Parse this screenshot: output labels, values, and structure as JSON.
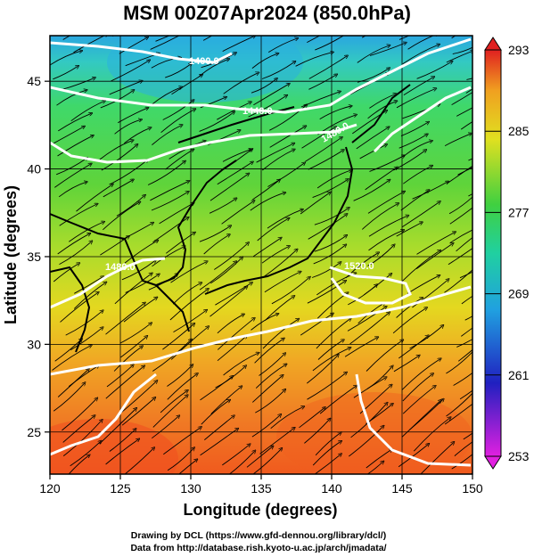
{
  "title": "MSM 00Z07Apr2024 (850.0hPa)",
  "x_axis": {
    "label": "Longitude (degrees)",
    "ticks": [
      "120",
      "125",
      "130",
      "135",
      "140",
      "145",
      "150"
    ],
    "range": [
      120,
      150
    ]
  },
  "y_axis": {
    "label": "Latitude  (degrees)",
    "ticks": [
      "25",
      "30",
      "35",
      "40",
      "45"
    ],
    "range": [
      22.6,
      47.6
    ]
  },
  "colorbar": {
    "ticks": [
      "253",
      "261",
      "269",
      "277",
      "285",
      "293"
    ],
    "range": [
      253,
      293
    ],
    "colors": [
      "#e020e0",
      "#2020c0",
      "#20c0e0",
      "#20c020",
      "#e0e020",
      "#e02020"
    ]
  },
  "contours": {
    "color": "#ffffff",
    "labels": [
      "1400.0",
      "1440.0",
      "1480.0",
      "1520.0",
      "1480.0"
    ]
  },
  "credits": {
    "line1": "Drawing by DCL (https://www.gfd-dennou.org/library/dcl/)",
    "line2": "Data from http://database.rish.kyoto-u.ac.jp/arch/jmadata/"
  }
}
